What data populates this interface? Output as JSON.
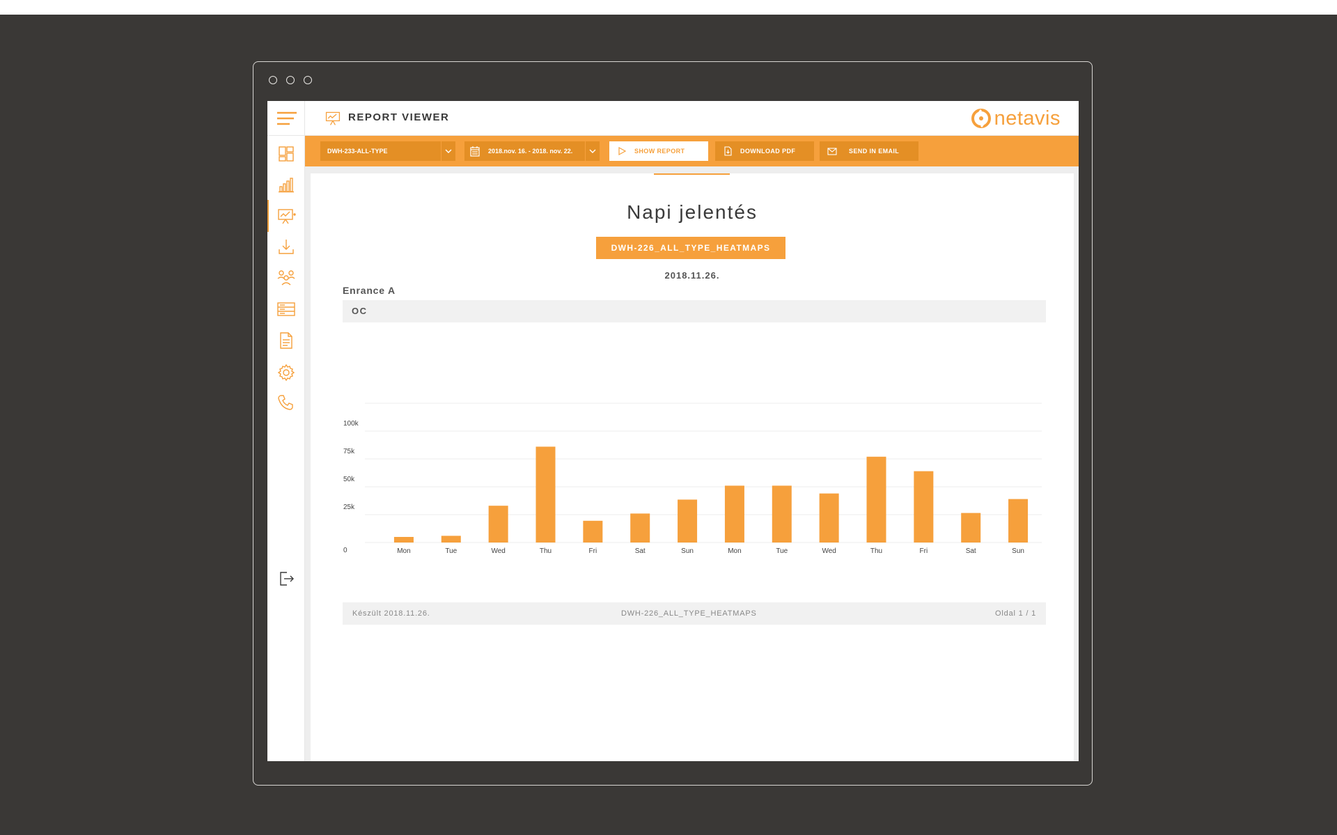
{
  "header": {
    "title": "REPORT VIEWER",
    "logo_text": "netavis"
  },
  "sidebar": {
    "items": [
      {
        "icon": "dashboard-icon"
      },
      {
        "icon": "bar-chart-icon"
      },
      {
        "icon": "report-viewer-icon",
        "active": true
      },
      {
        "icon": "download-icon"
      },
      {
        "icon": "users-icon"
      },
      {
        "icon": "storage-icon"
      },
      {
        "icon": "document-icon"
      },
      {
        "icon": "settings-gear-icon"
      },
      {
        "icon": "phone-icon"
      }
    ],
    "logout_icon": "logout-icon"
  },
  "toolbar": {
    "report_select": "DWH-233-ALL-TYPE",
    "date_range": "2018.nov. 16. - 2018. nov. 22.",
    "show_report": "SHOW REPORT",
    "download_pdf": "DOWNLOAD PDF",
    "send_email": "SEND IN EMAIL"
  },
  "report": {
    "title": "Napi jelentés",
    "tag": "DWH-226_ALL_TYPE_HEATMAPS",
    "date": "2018.11.26.",
    "section": "Enrance A",
    "subsection": "OC"
  },
  "chart_data": {
    "type": "bar",
    "categories": [
      "Mon",
      "Tue",
      "Wed",
      "Thu",
      "Fri",
      "Sat",
      "Sun",
      "Mon",
      "Tue",
      "Wed",
      "Thu",
      "Fri",
      "Sat",
      "Sun"
    ],
    "values": [
      5000,
      6000,
      33000,
      86000,
      19500,
      26000,
      38500,
      51000,
      51000,
      44000,
      77000,
      64000,
      26500,
      39000
    ],
    "y_ticks": [
      "0",
      "25k",
      "50k",
      "75k",
      "100k"
    ],
    "ylim": [
      0,
      100000
    ],
    "grid": true,
    "color": "#f6a03c"
  },
  "footer": {
    "created": "Készült 2018.11.26.",
    "report_name": "DWH-226_ALL_TYPE_HEATMAPS",
    "page": "Oldal 1 / 1"
  },
  "colors": {
    "accent": "#f6a03c",
    "accent_dark": "#e48f25",
    "background": "#3a3836"
  }
}
